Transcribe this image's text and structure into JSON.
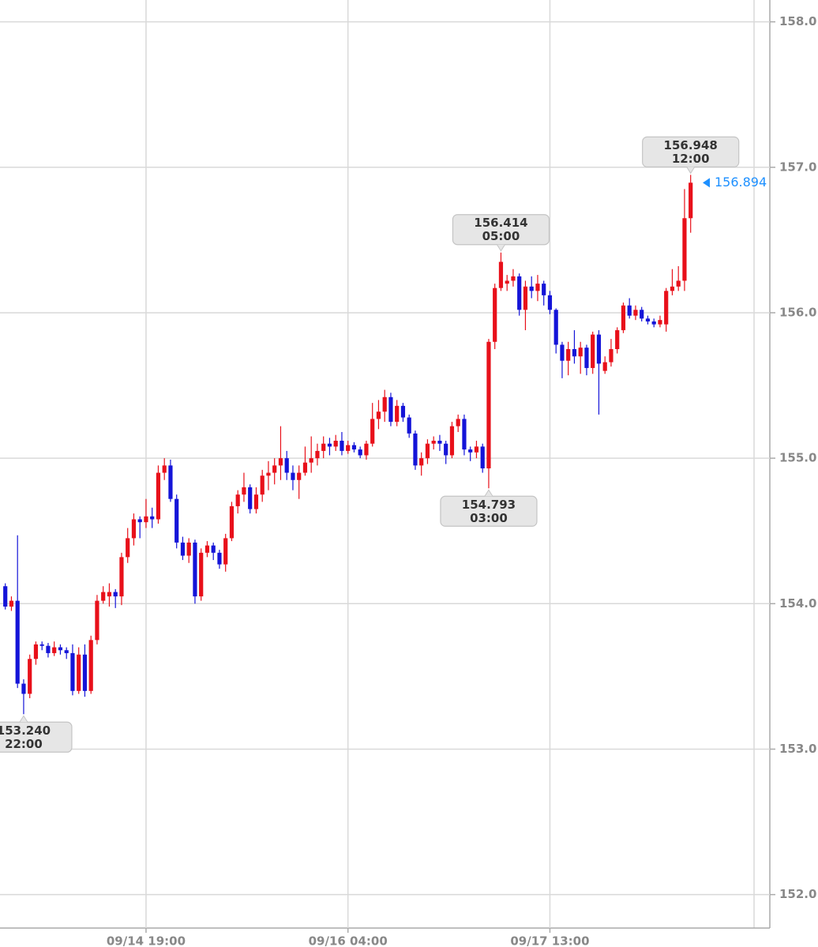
{
  "chart_data": {
    "type": "candlestick",
    "categories": [
      null,
      null,
      null,
      null,
      null,
      null,
      null,
      null,
      null,
      null,
      null,
      null,
      null,
      null,
      null,
      null,
      null,
      null,
      null,
      null,
      null,
      null,
      null,
      "09/14 19:00",
      null,
      null,
      null,
      null,
      null,
      null,
      null,
      null,
      null,
      null,
      null,
      null,
      null,
      null,
      null,
      null,
      null,
      null,
      null,
      null,
      null,
      null,
      null,
      null,
      null,
      null,
      null,
      null,
      null,
      null,
      null,
      null,
      "09/16 04:00",
      null,
      null,
      null,
      null,
      null,
      null,
      null,
      null,
      null,
      null,
      null,
      null,
      null,
      null,
      null,
      null,
      null,
      null,
      null,
      null,
      null,
      null,
      null,
      null,
      null,
      null,
      null,
      null,
      null,
      null,
      null,
      null,
      "09/17 13:00",
      null,
      null,
      null,
      null,
      null,
      null,
      null,
      null,
      null,
      null,
      null,
      null,
      null,
      null,
      null,
      null,
      null,
      null,
      null,
      null,
      null,
      null,
      null
    ],
    "open": [
      154.12,
      153.98,
      154.02,
      153.45,
      153.38,
      153.62,
      153.72,
      153.71,
      153.66,
      153.7,
      153.68,
      153.66,
      153.4,
      153.65,
      153.4,
      153.75,
      154.02,
      154.05,
      154.08,
      154.05,
      154.32,
      154.45,
      154.58,
      154.56,
      154.6,
      154.58,
      154.9,
      154.95,
      154.72,
      154.42,
      154.33,
      154.42,
      154.05,
      154.35,
      154.4,
      154.35,
      154.27,
      154.45,
      154.67,
      154.75,
      154.8,
      154.65,
      154.75,
      154.88,
      154.9,
      154.95,
      155.0,
      154.9,
      154.85,
      154.9,
      154.97,
      155.0,
      155.05,
      155.1,
      155.08,
      155.12,
      155.05,
      155.09,
      155.06,
      155.02,
      155.1,
      155.27,
      155.32,
      155.42,
      155.25,
      155.36,
      155.28,
      155.17,
      154.95,
      155.0,
      155.1,
      155.12,
      155.1,
      155.02,
      155.22,
      155.27,
      155.06,
      155.04,
      155.08,
      154.93,
      155.8,
      156.17,
      156.2,
      156.22,
      156.25,
      156.02,
      156.18,
      156.15,
      156.2,
      156.12,
      156.02,
      155.78,
      155.67,
      155.75,
      155.7,
      155.76,
      155.62,
      155.85,
      155.6,
      155.66,
      155.75,
      155.88,
      156.05,
      155.98,
      156.02,
      155.96,
      155.94,
      155.92,
      155.92,
      156.15,
      156.18,
      156.22,
      156.65
    ],
    "high": [
      154.14,
      154.05,
      154.47,
      153.48,
      153.65,
      153.74,
      153.74,
      153.73,
      153.74,
      153.72,
      153.7,
      153.72,
      153.7,
      153.72,
      153.78,
      154.06,
      154.12,
      154.14,
      154.1,
      154.35,
      154.52,
      154.62,
      154.6,
      154.72,
      154.66,
      154.95,
      155.0,
      154.99,
      154.75,
      154.46,
      154.45,
      154.44,
      154.38,
      154.43,
      154.42,
      154.37,
      154.48,
      154.7,
      154.78,
      154.9,
      154.82,
      154.8,
      154.92,
      154.98,
      155.0,
      155.22,
      155.05,
      154.95,
      154.95,
      155.08,
      155.15,
      155.1,
      155.15,
      155.14,
      155.16,
      155.18,
      155.12,
      155.11,
      155.08,
      155.12,
      155.38,
      155.4,
      155.47,
      155.45,
      155.4,
      155.38,
      155.3,
      155.19,
      155.04,
      155.13,
      155.15,
      155.16,
      155.12,
      155.25,
      155.3,
      155.3,
      155.08,
      155.12,
      155.1,
      155.82,
      156.2,
      156.414,
      156.26,
      156.3,
      156.27,
      156.22,
      156.25,
      156.26,
      156.22,
      156.15,
      156.03,
      155.8,
      155.8,
      155.88,
      155.8,
      155.78,
      155.87,
      155.88,
      155.7,
      155.82,
      155.9,
      156.07,
      156.1,
      156.05,
      156.04,
      155.98,
      155.96,
      155.98,
      156.17,
      156.3,
      156.32,
      156.85,
      156.948
    ],
    "low": [
      153.96,
      153.95,
      153.42,
      153.24,
      153.35,
      153.58,
      153.68,
      153.63,
      153.64,
      153.65,
      153.62,
      153.37,
      153.38,
      153.36,
      153.38,
      153.72,
      154.0,
      153.98,
      153.97,
      153.99,
      154.28,
      154.4,
      154.45,
      154.52,
      154.52,
      154.55,
      154.85,
      154.7,
      154.38,
      154.3,
      154.28,
      154.0,
      154.02,
      154.32,
      154.3,
      154.24,
      154.22,
      154.43,
      154.62,
      154.7,
      154.62,
      154.62,
      154.7,
      154.78,
      154.82,
      154.85,
      154.85,
      154.78,
      154.72,
      154.88,
      154.9,
      154.95,
      155.0,
      155.02,
      155.05,
      155.02,
      155.03,
      155.04,
      155.0,
      154.99,
      155.08,
      155.2,
      155.25,
      155.22,
      155.22,
      155.25,
      155.14,
      154.92,
      154.88,
      154.96,
      155.06,
      155.05,
      154.96,
      155.0,
      155.18,
      155.02,
      154.98,
      155.0,
      154.9,
      154.793,
      155.75,
      156.15,
      156.15,
      156.18,
      155.98,
      155.88,
      156.1,
      156.08,
      156.05,
      155.99,
      155.72,
      155.55,
      155.57,
      155.65,
      155.58,
      155.57,
      155.58,
      155.3,
      155.58,
      155.63,
      155.72,
      155.86,
      155.96,
      155.95,
      155.94,
      155.92,
      155.9,
      155.9,
      155.87,
      156.12,
      156.15,
      156.15,
      156.55
    ],
    "close": [
      153.98,
      154.02,
      153.45,
      153.38,
      153.62,
      153.72,
      153.71,
      153.66,
      153.7,
      153.68,
      153.66,
      153.4,
      153.65,
      153.4,
      153.75,
      154.02,
      154.08,
      154.08,
      154.05,
      154.32,
      154.45,
      154.58,
      154.56,
      154.6,
      154.58,
      154.9,
      154.95,
      154.72,
      154.42,
      154.33,
      154.42,
      154.05,
      154.35,
      154.4,
      154.35,
      154.27,
      154.45,
      154.67,
      154.75,
      154.8,
      154.65,
      154.75,
      154.88,
      154.9,
      154.95,
      155.0,
      154.9,
      154.85,
      154.9,
      154.97,
      155.0,
      155.05,
      155.1,
      155.08,
      155.12,
      155.05,
      155.09,
      155.06,
      155.02,
      155.1,
      155.27,
      155.32,
      155.42,
      155.25,
      155.36,
      155.28,
      155.17,
      154.95,
      155.0,
      155.1,
      155.12,
      155.1,
      155.02,
      155.22,
      155.27,
      155.06,
      155.04,
      155.08,
      154.93,
      155.8,
      156.17,
      156.35,
      156.22,
      156.25,
      156.02,
      156.18,
      156.15,
      156.2,
      156.12,
      156.02,
      155.78,
      155.67,
      155.75,
      155.7,
      155.76,
      155.62,
      155.85,
      155.65,
      155.66,
      155.75,
      155.88,
      156.05,
      155.98,
      156.02,
      155.96,
      155.94,
      155.92,
      155.95,
      156.15,
      156.18,
      156.22,
      156.65,
      156.894
    ],
    "up_color": "#e8101a",
    "down_color": "#1414d8",
    "last_color": "#1e90ff",
    "ylim": [
      151.77,
      158.15
    ],
    "yticks": [
      {
        "value": 152,
        "label": "152.0"
      },
      {
        "value": 153,
        "label": "153.0"
      },
      {
        "value": 154,
        "label": "154.0"
      },
      {
        "value": 155,
        "label": "155.0"
      },
      {
        "value": 156,
        "label": "156.0"
      },
      {
        "value": 157,
        "label": "157.0"
      },
      {
        "value": 158,
        "label": "158.0"
      }
    ],
    "grid": true,
    "annotations": [
      {
        "price": {
          "value": 153.24,
          "label": "153.240"
        },
        "time": "22:00"
      },
      {
        "price": 154.793,
        "time": "03:00"
      },
      {
        "price": 156.414,
        "time": "05:00"
      },
      {
        "price": 156.948,
        "time": "12:00"
      }
    ]
  }
}
